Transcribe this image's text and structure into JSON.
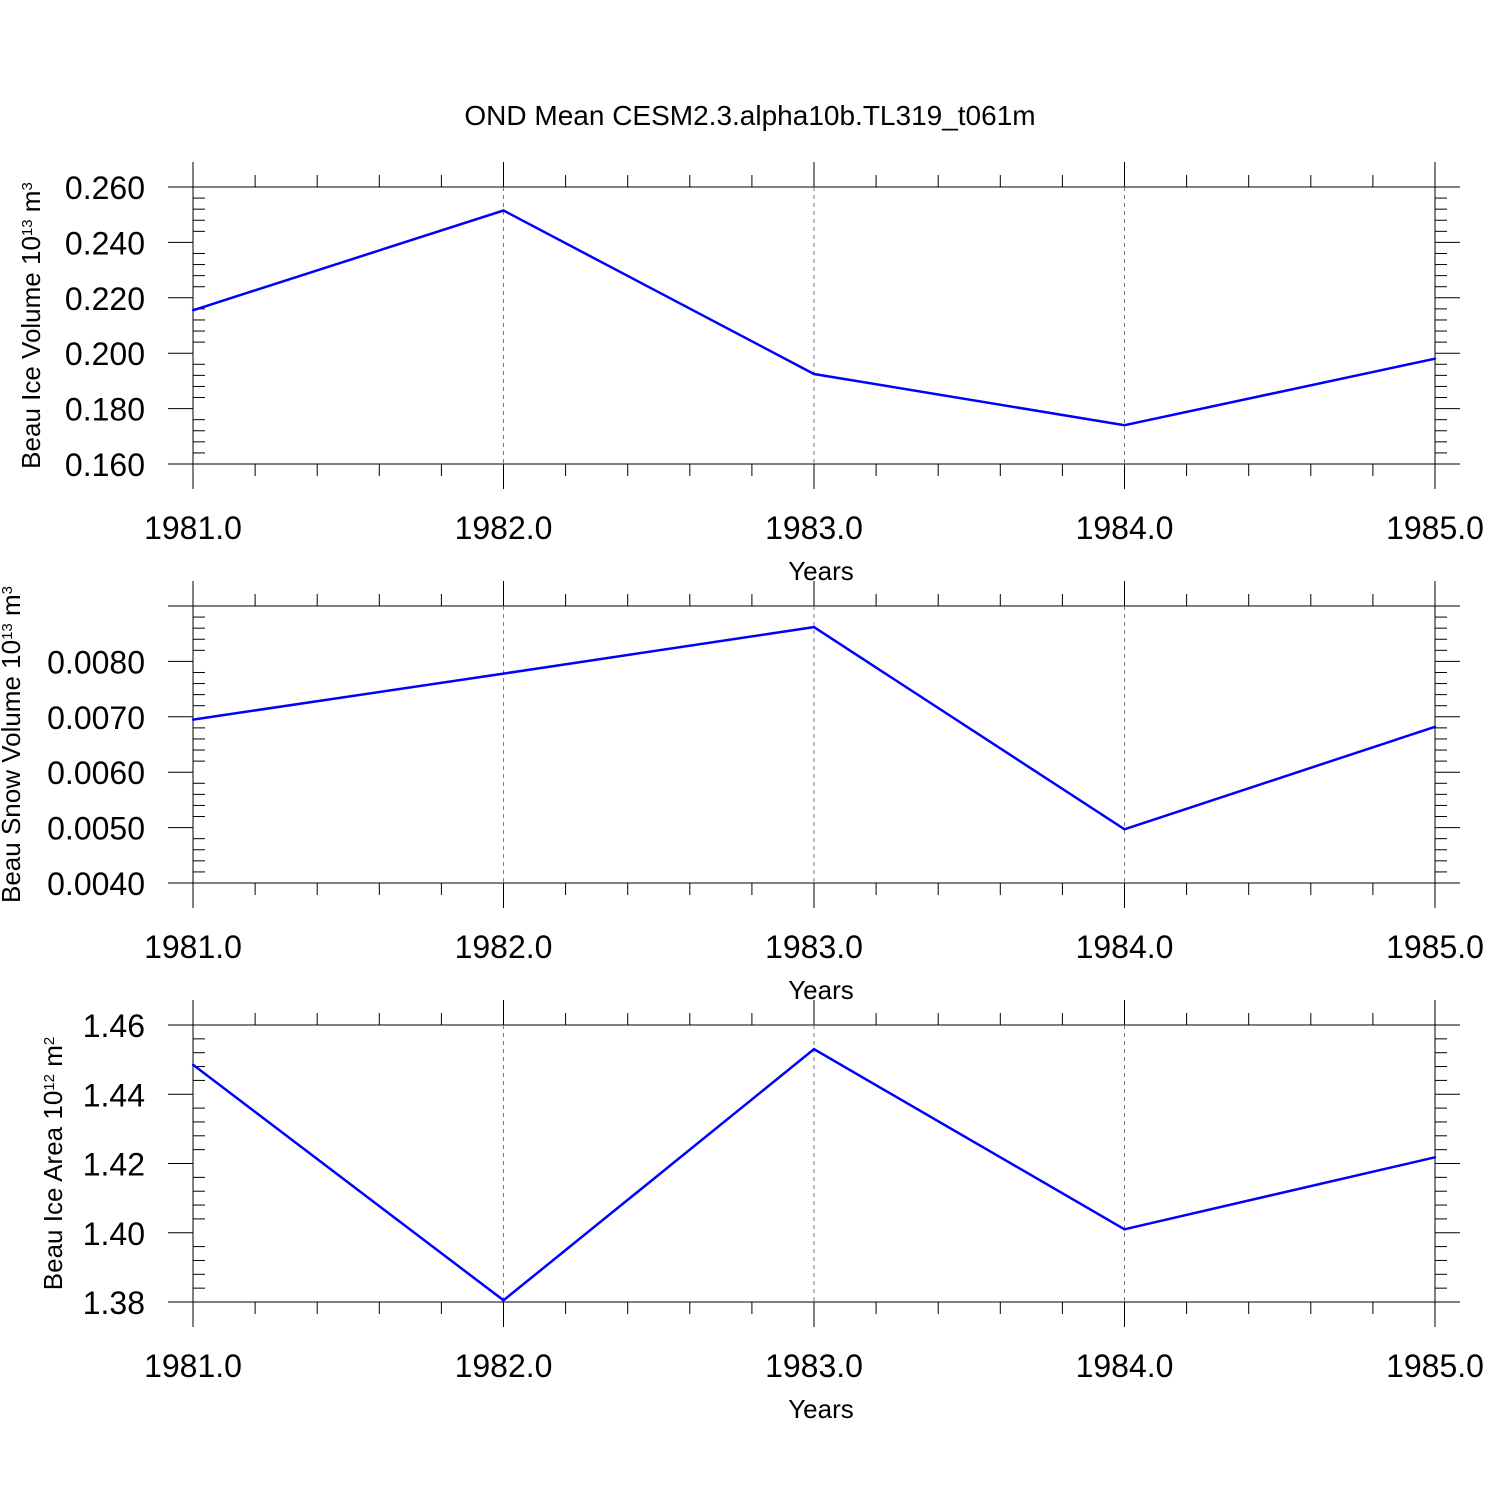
{
  "chart_data": {
    "type": "line",
    "title": "OND Mean CESM2.3.alpha10b.TL319_t061m",
    "series_color": "#0000ff",
    "gridlines": "vertical dashed at major x ticks",
    "panels": [
      {
        "ylabel": {
          "main": "Beau Ice Volume 10",
          "sup1": "13",
          "mid": " m",
          "sup2": "3"
        },
        "xlabel": "Years",
        "xlim": [
          1981,
          1985
        ],
        "ylim": [
          0.16,
          0.26
        ],
        "x_ticks": [
          "1981.0",
          "1982.0",
          "1983.0",
          "1984.0",
          "1985.0"
        ],
        "y_ticks": [
          "0.160",
          "0.180",
          "0.200",
          "0.220",
          "0.240",
          "0.260"
        ],
        "x": [
          1981,
          1982,
          1983,
          1984,
          1985
        ],
        "y": [
          0.2155,
          0.2515,
          0.1925,
          0.174,
          0.198
        ]
      },
      {
        "ylabel": {
          "main": "Beau Snow Volume 10",
          "sup1": "13",
          "mid": " m",
          "sup2": "3"
        },
        "xlabel": "Years",
        "xlim": [
          1981,
          1985
        ],
        "ylim": [
          0.004,
          0.009
        ],
        "x_ticks": [
          "1981.0",
          "1982.0",
          "1983.0",
          "1984.0",
          "1985.0"
        ],
        "y_ticks": [
          "0.0040",
          "0.0050",
          "0.0060",
          "0.0070",
          "0.0080"
        ],
        "x": [
          1981,
          1982,
          1983,
          1984,
          1985
        ],
        "y": [
          0.00695,
          0.00778,
          0.00862,
          0.00497,
          0.00682
        ]
      },
      {
        "ylabel": {
          "main": "Beau Ice Area 10",
          "sup1": "12",
          "mid": " m",
          "sup2": "2"
        },
        "xlabel": "Years",
        "xlim": [
          1981,
          1985
        ],
        "ylim": [
          1.38,
          1.46
        ],
        "x_ticks": [
          "1981.0",
          "1982.0",
          "1983.0",
          "1984.0",
          "1985.0"
        ],
        "y_ticks": [
          "1.38",
          "1.40",
          "1.42",
          "1.44",
          "1.46"
        ],
        "x": [
          1981,
          1982,
          1983,
          1984,
          1985
        ],
        "y": [
          1.4485,
          1.3805,
          1.453,
          1.401,
          1.4218
        ]
      }
    ]
  }
}
